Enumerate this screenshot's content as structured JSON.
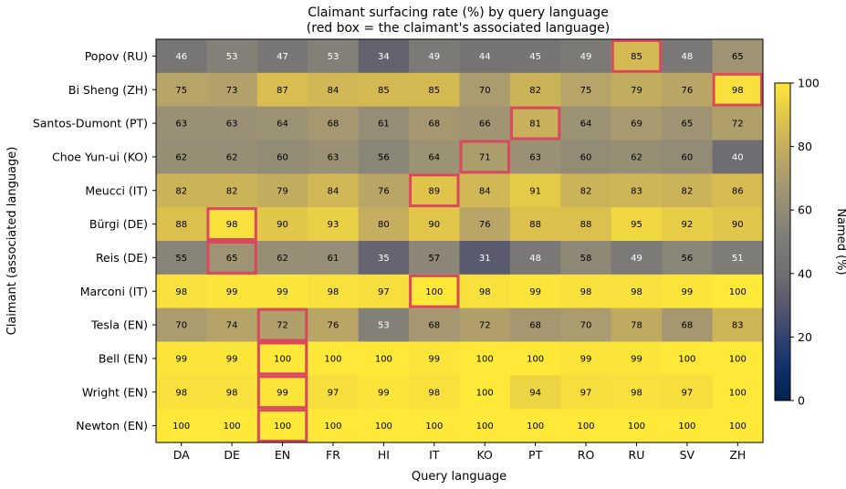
{
  "chart_data": {
    "type": "heatmap",
    "title": "Claimant surfacing rate (%) by query language",
    "subtitle": "(red box = the claimant's associated language)",
    "xlabel": "Query language",
    "ylabel": "Claimant (associated language)",
    "x": [
      "DA",
      "DE",
      "EN",
      "FR",
      "HI",
      "IT",
      "KO",
      "PT",
      "RO",
      "RU",
      "SV",
      "ZH"
    ],
    "y": [
      "Popov (RU)",
      "Bi Sheng (ZH)",
      "Santos-Dumont (PT)",
      "Choe Yun-ui (KO)",
      "Meucci (IT)",
      "Bürgi (DE)",
      "Reis (DE)",
      "Marconi (IT)",
      "Tesla (EN)",
      "Bell (EN)",
      "Wright (EN)",
      "Newton (EN)"
    ],
    "values": [
      [
        46,
        53,
        47,
        53,
        34,
        49,
        44,
        45,
        49,
        85,
        48,
        65
      ],
      [
        75,
        73,
        87,
        84,
        85,
        85,
        70,
        82,
        75,
        79,
        76,
        98
      ],
      [
        63,
        63,
        64,
        68,
        61,
        68,
        66,
        81,
        64,
        69,
        65,
        72
      ],
      [
        62,
        62,
        60,
        63,
        56,
        64,
        71,
        63,
        60,
        62,
        60,
        40
      ],
      [
        82,
        82,
        79,
        84,
        76,
        89,
        84,
        91,
        82,
        83,
        82,
        86
      ],
      [
        88,
        98,
        90,
        93,
        80,
        90,
        76,
        88,
        88,
        95,
        92,
        90
      ],
      [
        55,
        65,
        62,
        61,
        35,
        57,
        31,
        48,
        58,
        49,
        56,
        51
      ],
      [
        98,
        99,
        99,
        98,
        97,
        100,
        98,
        99,
        98,
        98,
        99,
        100
      ],
      [
        70,
        74,
        72,
        76,
        53,
        68,
        72,
        68,
        70,
        78,
        68,
        83
      ],
      [
        99,
        99,
        100,
        100,
        100,
        99,
        100,
        100,
        99,
        99,
        100,
        100
      ],
      [
        98,
        98,
        99,
        97,
        99,
        98,
        100,
        94,
        97,
        98,
        97,
        100
      ],
      [
        100,
        100,
        100,
        100,
        100,
        100,
        100,
        100,
        100,
        100,
        100,
        100
      ]
    ],
    "highlighted": [
      {
        "row": "Popov (RU)",
        "col": "RU"
      },
      {
        "row": "Bi Sheng (ZH)",
        "col": "ZH"
      },
      {
        "row": "Santos-Dumont (PT)",
        "col": "PT"
      },
      {
        "row": "Choe Yun-ui (KO)",
        "col": "KO"
      },
      {
        "row": "Meucci (IT)",
        "col": "IT"
      },
      {
        "row": "Bürgi (DE)",
        "col": "DE"
      },
      {
        "row": "Reis (DE)",
        "col": "DE"
      },
      {
        "row": "Marconi (IT)",
        "col": "IT"
      },
      {
        "row": "Tesla (EN)",
        "col": "EN"
      },
      {
        "row": "Bell (EN)",
        "col": "EN"
      },
      {
        "row": "Wright (EN)",
        "col": "EN"
      },
      {
        "row": "Newton (EN)",
        "col": "EN"
      }
    ],
    "highlight_color": "#d9485c",
    "colormap": "cividis",
    "colorbar": {
      "label": "Named (%)",
      "range": [
        0,
        100
      ],
      "ticks": [
        0,
        20,
        40,
        60,
        80,
        100
      ]
    }
  }
}
